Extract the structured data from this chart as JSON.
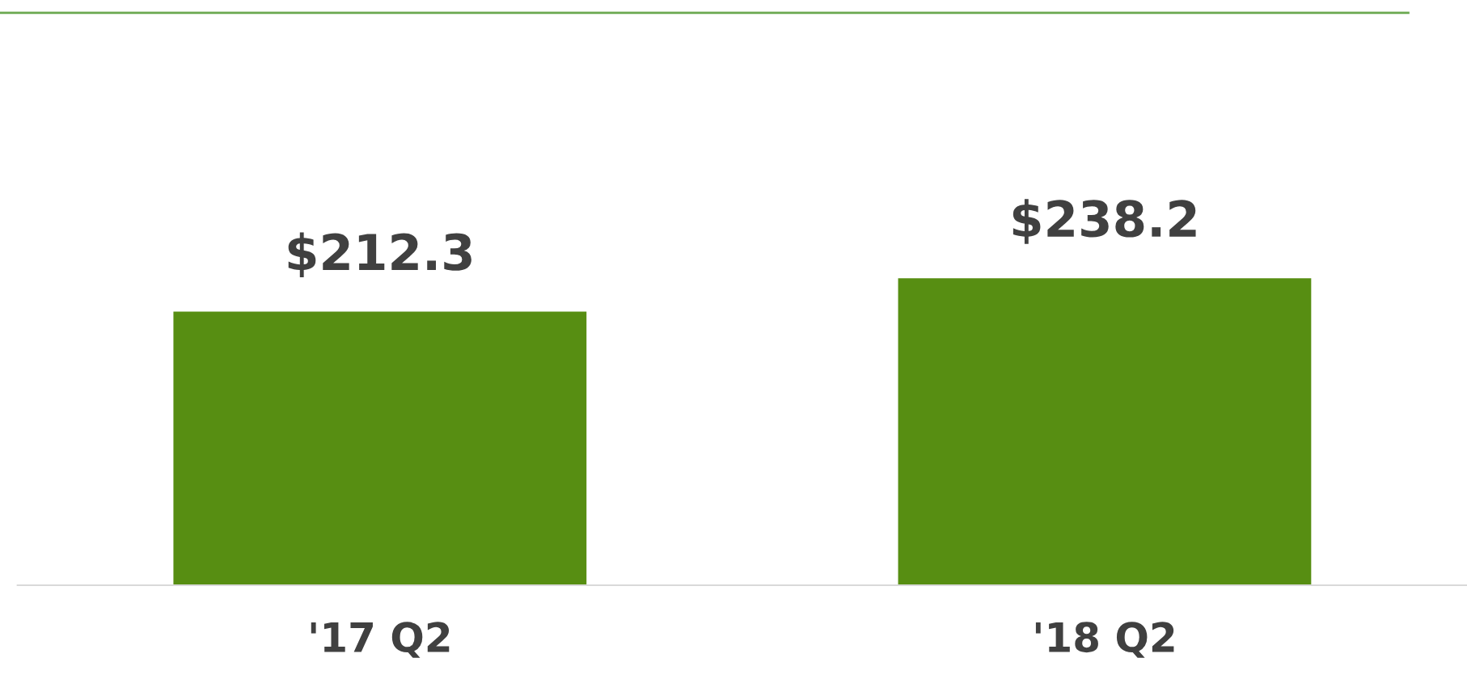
{
  "chart_data": {
    "type": "bar",
    "categories": [
      "'17 Q2",
      "'18 Q2"
    ],
    "values": [
      212.3,
      238.2
    ],
    "value_labels": [
      "$212.3",
      "$238.2"
    ],
    "color": "#578e12",
    "grid": false,
    "legend": false
  }
}
